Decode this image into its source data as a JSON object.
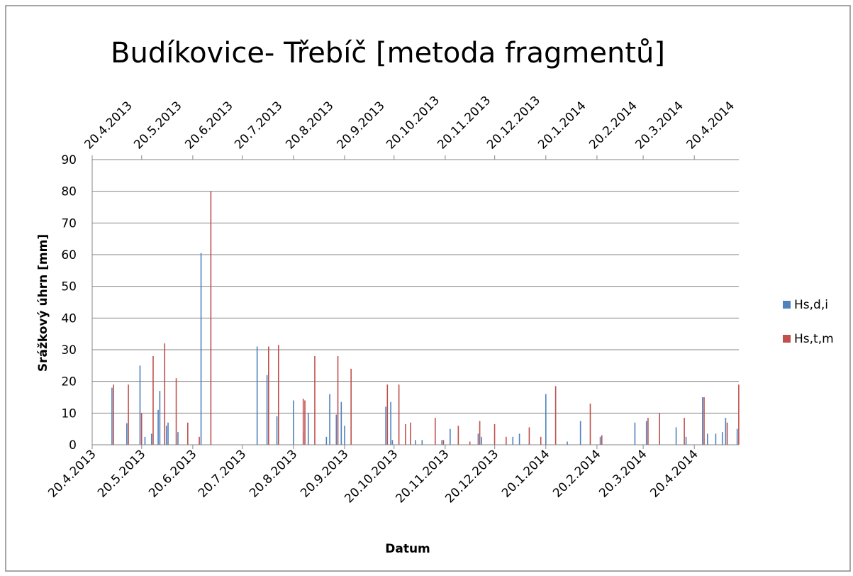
{
  "chart_data": {
    "type": "bar",
    "title": "Budíkovice- Třebíč [metoda fragmentů]",
    "x_label": "Datum",
    "y_label": "Srážkový úhrn [mm]",
    "x": [
      "2.5.2013",
      "11.5.2013",
      "19.5.2013",
      "22.5.2013",
      "26.5.2013",
      "30.5.2013",
      "31.5.2013",
      "2.6.2013",
      "4.6.2013",
      "5.6.2013",
      "9.6.2013",
      "11.6.2013",
      "16.6.2013",
      "23.6.2013",
      "25.6.2013",
      "30.6.2013",
      "29.7.2013",
      "4.8.2013",
      "10.8.2013",
      "20.8.2013",
      "25.8.2013",
      "26.8.2013",
      "29.8.2013",
      "1.9.2013",
      "9.9.2013",
      "11.9.2013",
      "15.9.2013",
      "18.9.2013",
      "20.9.2013",
      "23.9.2013",
      "15.10.2013",
      "18.10.2013",
      "19.10.2013",
      "22.10.2013",
      "26.10.2013",
      "29.10.2013",
      "2.11.2013",
      "6.11.2013",
      "13.11.2013",
      "18.11.2013",
      "23.11.2013",
      "27.11.2013",
      "4.12.2013",
      "10.12.2013",
      "12.12.2013",
      "19.12.2013",
      "26.12.2013",
      "31.12.2013",
      "4.1.2014",
      "9.1.2014",
      "16.1.2014",
      "20.1.2014",
      "25.1.2014",
      "2.2.2014",
      "10.2.2014",
      "15.2.2014",
      "22.2.2014",
      "15.3.2014",
      "22.3.2014",
      "29.3.2014",
      "9.4.2014",
      "13.4.2014",
      "15.4.2014",
      "25.4.2014",
      "28.4.2014",
      "3.5.2014",
      "7.5.2014",
      "9.5.2014",
      "16.5.2014"
    ],
    "series": [
      {
        "name": "Hs,d,i",
        "color": "#4f81bd",
        "values": [
          18,
          6.8,
          25,
          2.5,
          3.5,
          11,
          17,
          null,
          6,
          7,
          null,
          4,
          null,
          null,
          60.5,
          null,
          31,
          22,
          9,
          14,
          null,
          4,
          10,
          null,
          2.5,
          16,
          9.5,
          13.5,
          6,
          null,
          12,
          13.5,
          1.5,
          null,
          null,
          null,
          1.5,
          1.5,
          null,
          1.5,
          5,
          null,
          null,
          3.5,
          2.5,
          null,
          null,
          2.5,
          3.5,
          null,
          null,
          16,
          null,
          1,
          7.5,
          null,
          2.5,
          7,
          7.5,
          null,
          5.5,
          null,
          2.5,
          15,
          3.5,
          3.5,
          4,
          8.5,
          5
        ]
      },
      {
        "name": "Hs,t,m",
        "color": "#c0504d",
        "values": [
          19,
          19,
          10,
          null,
          28,
          null,
          null,
          32,
          null,
          null,
          21,
          null,
          7,
          2.5,
          null,
          80,
          null,
          31,
          31.5,
          null,
          14.5,
          14,
          null,
          28,
          null,
          null,
          28,
          null,
          null,
          24,
          19,
          null,
          null,
          19,
          6.5,
          7,
          null,
          null,
          8.5,
          1.5,
          null,
          6,
          1,
          7.5,
          null,
          6.5,
          2.5,
          null,
          null,
          5.5,
          2.5,
          null,
          18.5,
          null,
          null,
          13,
          3,
          null,
          8.5,
          10,
          null,
          8.5,
          null,
          15,
          null,
          null,
          null,
          7,
          19
        ]
      }
    ],
    "xlim": [
      "20.4.2013",
      "17.5.2014"
    ],
    "xticks": [
      "20.4.2013",
      "20.5.2013",
      "20.6.2013",
      "20.7.2013",
      "20.8.2013",
      "20.9.2013",
      "20.10.2013",
      "20.11.2013",
      "20.12.2013",
      "20.1.2014",
      "20.2.2014",
      "20.3.2014",
      "20.4.2014"
    ],
    "ylim": [
      0,
      90
    ],
    "yticks": [
      0,
      10,
      20,
      30,
      40,
      50,
      60,
      70,
      80,
      90
    ],
    "grid": true,
    "legend": "right"
  }
}
